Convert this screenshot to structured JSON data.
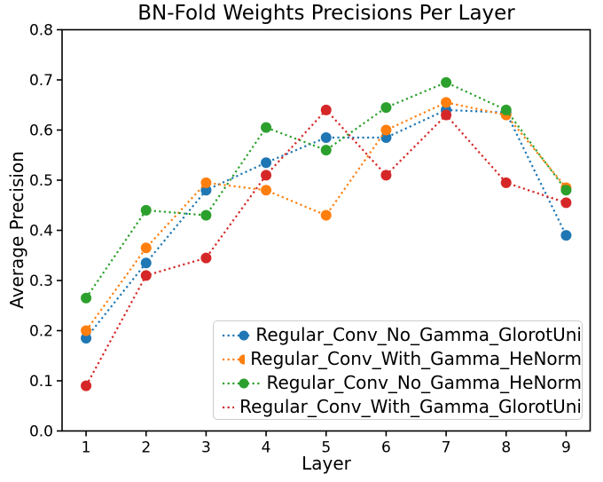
{
  "chart_data": {
    "type": "line",
    "title": "BN-Fold Weights Precisions Per Layer",
    "xlabel": "Layer",
    "ylabel": "Average Precision",
    "line_style": "dotted",
    "marker": "circle",
    "grid": false,
    "legend_position": "lower right",
    "x": [
      1,
      2,
      3,
      4,
      5,
      6,
      7,
      8,
      9
    ],
    "xticks": [
      "1",
      "2",
      "3",
      "4",
      "5",
      "6",
      "7",
      "8",
      "9"
    ],
    "yticks": [
      "0.0",
      "0.1",
      "0.2",
      "0.3",
      "0.4",
      "0.5",
      "0.6",
      "0.7",
      "0.8"
    ],
    "xlim": [
      0.6,
      9.4
    ],
    "ylim": [
      0.0,
      0.8
    ],
    "axis_color": "#000000",
    "series": [
      {
        "name": "Regular_Conv_No_Gamma_GlorotUni",
        "color": "#1f77b4",
        "values": [
          0.185,
          0.335,
          0.48,
          0.535,
          0.585,
          0.585,
          0.64,
          0.635,
          0.39
        ]
      },
      {
        "name": "Regular_Conv_With_Gamma_HeNorm",
        "color": "#ff7f0e",
        "values": [
          0.2,
          0.365,
          0.495,
          0.48,
          0.43,
          0.6,
          0.655,
          0.63,
          0.485
        ]
      },
      {
        "name": "Regular_Conv_No_Gamma_HeNorm",
        "color": "#2ca02c",
        "values": [
          0.265,
          0.44,
          0.43,
          0.605,
          0.56,
          0.645,
          0.695,
          0.64,
          0.48
        ]
      },
      {
        "name": "Regular_Conv_With_Gamma_GlorotUni",
        "color": "#d62728",
        "values": [
          0.09,
          0.31,
          0.345,
          0.51,
          0.64,
          0.51,
          0.63,
          0.495,
          0.455
        ]
      }
    ]
  }
}
